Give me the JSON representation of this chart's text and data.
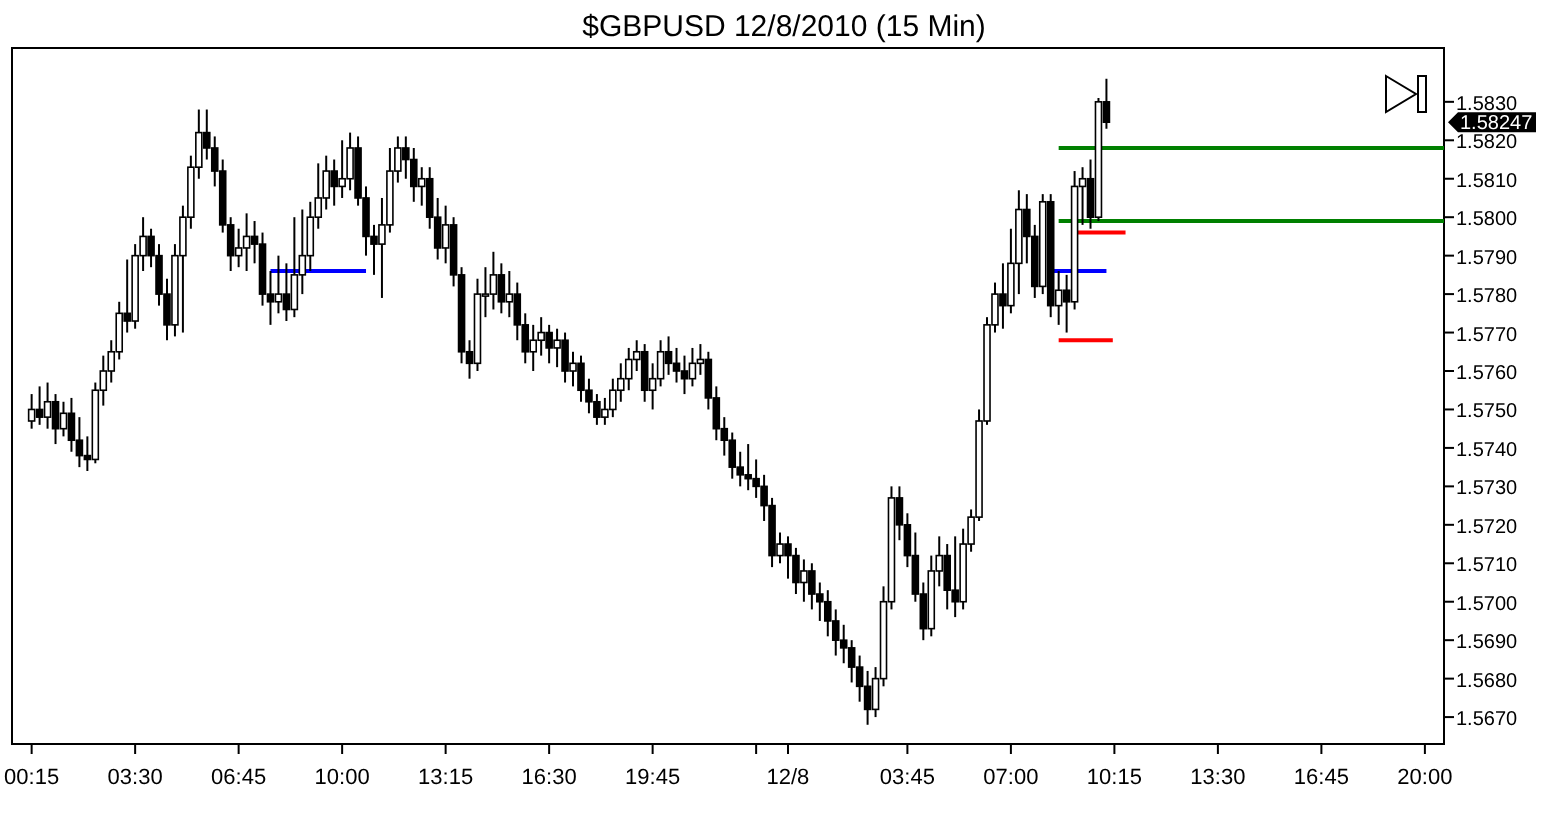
{
  "chart_data": {
    "type": "candlestick",
    "title": "$GBPUSD  12/8/2010 (15 Min)",
    "x": [
      "2010-12-07T00:15",
      "2010-12-07T00:30",
      "2010-12-07T00:45",
      "2010-12-07T01:00",
      "2010-12-07T01:15",
      "2010-12-07T01:30",
      "2010-12-07T01:45",
      "2010-12-07T02:00",
      "2010-12-07T02:15",
      "2010-12-07T02:30",
      "2010-12-07T02:45",
      "2010-12-07T03:00",
      "2010-12-07T03:15",
      "2010-12-07T03:30",
      "2010-12-07T03:45",
      "2010-12-07T04:00",
      "2010-12-07T04:15",
      "2010-12-07T04:30",
      "2010-12-07T04:45",
      "2010-12-07T05:00",
      "2010-12-07T05:15",
      "2010-12-07T05:30",
      "2010-12-07T05:45",
      "2010-12-07T06:00",
      "2010-12-07T06:15",
      "2010-12-07T06:30",
      "2010-12-07T06:45",
      "2010-12-07T07:00",
      "2010-12-07T07:15",
      "2010-12-07T07:30",
      "2010-12-07T07:45",
      "2010-12-07T08:00",
      "2010-12-07T08:15",
      "2010-12-07T08:30",
      "2010-12-07T08:45",
      "2010-12-07T09:00",
      "2010-12-07T09:15",
      "2010-12-07T09:30",
      "2010-12-07T09:45",
      "2010-12-07T10:00",
      "2010-12-07T10:15",
      "2010-12-07T10:30",
      "2010-12-07T10:45",
      "2010-12-07T11:00",
      "2010-12-07T11:15",
      "2010-12-07T11:30",
      "2010-12-07T11:45",
      "2010-12-07T12:00",
      "2010-12-07T12:15",
      "2010-12-07T12:30",
      "2010-12-07T12:45",
      "2010-12-07T13:00",
      "2010-12-07T13:15",
      "2010-12-07T13:30",
      "2010-12-07T13:45",
      "2010-12-07T14:00",
      "2010-12-07T14:15",
      "2010-12-07T14:30",
      "2010-12-07T14:45",
      "2010-12-07T15:00",
      "2010-12-07T15:15",
      "2010-12-07T15:30",
      "2010-12-07T15:45",
      "2010-12-07T16:00",
      "2010-12-07T16:15",
      "2010-12-07T16:30",
      "2010-12-07T16:45",
      "2010-12-07T17:00",
      "2010-12-07T17:15",
      "2010-12-07T17:30",
      "2010-12-07T17:45",
      "2010-12-07T18:00",
      "2010-12-07T18:15",
      "2010-12-07T18:30",
      "2010-12-07T18:45",
      "2010-12-07T19:00",
      "2010-12-07T19:15",
      "2010-12-07T19:30",
      "2010-12-07T19:45",
      "2010-12-07T20:00",
      "2010-12-07T20:15",
      "2010-12-07T20:30",
      "2010-12-07T20:45",
      "2010-12-07T21:00",
      "2010-12-07T21:15",
      "2010-12-07T21:30",
      "2010-12-07T21:45",
      "2010-12-07T22:00",
      "2010-12-07T22:15",
      "2010-12-07T22:30",
      "2010-12-07T22:45",
      "2010-12-07T23:00",
      "2010-12-07T23:15",
      "2010-12-07T23:30",
      "2010-12-07T23:45",
      "2010-12-08T00:00",
      "2010-12-08T00:15",
      "2010-12-08T00:30",
      "2010-12-08T00:45",
      "2010-12-08T01:00",
      "2010-12-08T01:15",
      "2010-12-08T01:30",
      "2010-12-08T01:45",
      "2010-12-08T02:00",
      "2010-12-08T02:15",
      "2010-12-08T02:30",
      "2010-12-08T02:45",
      "2010-12-08T03:00",
      "2010-12-08T03:15",
      "2010-12-08T03:30",
      "2010-12-08T03:45",
      "2010-12-08T04:00",
      "2010-12-08T04:15",
      "2010-12-08T04:30",
      "2010-12-08T04:45",
      "2010-12-08T05:00",
      "2010-12-08T05:15",
      "2010-12-08T05:30",
      "2010-12-08T05:45",
      "2010-12-08T06:00",
      "2010-12-08T06:15",
      "2010-12-08T06:30",
      "2010-12-08T06:45",
      "2010-12-08T07:00",
      "2010-12-08T07:15",
      "2010-12-08T07:30",
      "2010-12-08T07:45",
      "2010-12-08T08:00",
      "2010-12-08T08:15",
      "2010-12-08T08:30",
      "2010-12-08T08:45",
      "2010-12-08T09:00",
      "2010-12-08T09:15",
      "2010-12-08T09:30",
      "2010-12-08T09:45",
      "2010-12-08T10:00"
    ],
    "ohlc": [
      [
        1.5747,
        1.5754,
        1.5745,
        1.575
      ],
      [
        1.575,
        1.5756,
        1.5746,
        1.5748
      ],
      [
        1.5748,
        1.5757,
        1.5745,
        1.5752
      ],
      [
        1.5752,
        1.5754,
        1.5741,
        1.5745
      ],
      [
        1.5745,
        1.5752,
        1.5743,
        1.5749
      ],
      [
        1.5749,
        1.5753,
        1.5739,
        1.5742
      ],
      [
        1.5742,
        1.5748,
        1.5735,
        1.5738
      ],
      [
        1.5738,
        1.5743,
        1.5734,
        1.5737
      ],
      [
        1.5737,
        1.5757,
        1.5736,
        1.5755
      ],
      [
        1.5755,
        1.5764,
        1.5751,
        1.576
      ],
      [
        1.576,
        1.5768,
        1.5757,
        1.5765
      ],
      [
        1.5765,
        1.5778,
        1.5763,
        1.5775
      ],
      [
        1.5775,
        1.5789,
        1.577,
        1.5773
      ],
      [
        1.5773,
        1.5793,
        1.5771,
        1.579
      ],
      [
        1.579,
        1.58,
        1.5786,
        1.5795
      ],
      [
        1.5795,
        1.5797,
        1.5787,
        1.579
      ],
      [
        1.579,
        1.5793,
        1.5777,
        1.578
      ],
      [
        1.578,
        1.5784,
        1.5768,
        1.5772
      ],
      [
        1.5772,
        1.5793,
        1.5769,
        1.579
      ],
      [
        1.579,
        1.5803,
        1.577,
        1.58
      ],
      [
        1.58,
        1.5816,
        1.5797,
        1.5813
      ],
      [
        1.5813,
        1.5828,
        1.581,
        1.5822
      ],
      [
        1.5822,
        1.5828,
        1.5815,
        1.5818
      ],
      [
        1.5818,
        1.5821,
        1.5808,
        1.5812
      ],
      [
        1.5812,
        1.5815,
        1.5796,
        1.5798
      ],
      [
        1.5798,
        1.58,
        1.5786,
        1.579
      ],
      [
        1.579,
        1.5797,
        1.5787,
        1.5792
      ],
      [
        1.5792,
        1.5801,
        1.5786,
        1.5795
      ],
      [
        1.5795,
        1.5799,
        1.5788,
        1.5793
      ],
      [
        1.5793,
        1.5796,
        1.5777,
        1.578
      ],
      [
        1.578,
        1.5786,
        1.5772,
        1.5778
      ],
      [
        1.5778,
        1.579,
        1.5775,
        1.578
      ],
      [
        1.578,
        1.5788,
        1.5773,
        1.5776
      ],
      [
        1.5776,
        1.58,
        1.5774,
        1.5785
      ],
      [
        1.5785,
        1.5802,
        1.578,
        1.579
      ],
      [
        1.579,
        1.5804,
        1.5786,
        1.58
      ],
      [
        1.58,
        1.5814,
        1.5797,
        1.5805
      ],
      [
        1.5805,
        1.5816,
        1.5802,
        1.5812
      ],
      [
        1.5812,
        1.5815,
        1.5803,
        1.5808
      ],
      [
        1.5808,
        1.582,
        1.5805,
        1.581
      ],
      [
        1.581,
        1.5822,
        1.5807,
        1.5818
      ],
      [
        1.5818,
        1.5821,
        1.5803,
        1.5805
      ],
      [
        1.5805,
        1.5808,
        1.579,
        1.5795
      ],
      [
        1.5795,
        1.5798,
        1.5785,
        1.5793
      ],
      [
        1.5793,
        1.5805,
        1.5779,
        1.5798
      ],
      [
        1.5798,
        1.5818,
        1.5796,
        1.5812
      ],
      [
        1.5812,
        1.5821,
        1.5809,
        1.5818
      ],
      [
        1.5818,
        1.5821,
        1.581,
        1.5815
      ],
      [
        1.5815,
        1.5818,
        1.5804,
        1.5808
      ],
      [
        1.5808,
        1.5813,
        1.5803,
        1.581
      ],
      [
        1.581,
        1.5813,
        1.5797,
        1.58
      ],
      [
        1.58,
        1.5805,
        1.5789,
        1.5792
      ],
      [
        1.5792,
        1.5803,
        1.5788,
        1.5798
      ],
      [
        1.5798,
        1.58,
        1.5782,
        1.5785
      ],
      [
        1.5785,
        1.5787,
        1.5762,
        1.5765
      ],
      [
        1.5765,
        1.5768,
        1.5758,
        1.5762
      ],
      [
        1.5762,
        1.5784,
        1.576,
        1.578
      ],
      [
        1.578,
        1.5787,
        1.5774,
        1.578
      ],
      [
        1.578,
        1.5791,
        1.5776,
        1.5785
      ],
      [
        1.5785,
        1.5788,
        1.5775,
        1.5778
      ],
      [
        1.5778,
        1.5786,
        1.5774,
        1.578
      ],
      [
        1.578,
        1.5783,
        1.5768,
        1.5772
      ],
      [
        1.5772,
        1.5775,
        1.5762,
        1.5765
      ],
      [
        1.5765,
        1.5772,
        1.576,
        1.5768
      ],
      [
        1.5768,
        1.5774,
        1.5764,
        1.577
      ],
      [
        1.577,
        1.5772,
        1.5762,
        1.5766
      ],
      [
        1.5766,
        1.5771,
        1.5761,
        1.5768
      ],
      [
        1.5768,
        1.577,
        1.5757,
        1.576
      ],
      [
        1.576,
        1.5765,
        1.5756,
        1.5762
      ],
      [
        1.5762,
        1.5764,
        1.5752,
        1.5755
      ],
      [
        1.5755,
        1.5758,
        1.5749,
        1.5752
      ],
      [
        1.5752,
        1.5754,
        1.5746,
        1.5748
      ],
      [
        1.5748,
        1.5753,
        1.5746,
        1.575
      ],
      [
        1.575,
        1.5758,
        1.5748,
        1.5755
      ],
      [
        1.5755,
        1.5762,
        1.5752,
        1.5758
      ],
      [
        1.5758,
        1.5766,
        1.5755,
        1.5763
      ],
      [
        1.5763,
        1.5768,
        1.576,
        1.5765
      ],
      [
        1.5765,
        1.5767,
        1.5752,
        1.5755
      ],
      [
        1.5755,
        1.5762,
        1.575,
        1.5758
      ],
      [
        1.5758,
        1.5768,
        1.5756,
        1.5765
      ],
      [
        1.5765,
        1.5769,
        1.5759,
        1.5762
      ],
      [
        1.5762,
        1.5766,
        1.5757,
        1.576
      ],
      [
        1.576,
        1.5764,
        1.5754,
        1.5758
      ],
      [
        1.5758,
        1.5766,
        1.5756,
        1.5762
      ],
      [
        1.5762,
        1.5767,
        1.5759,
        1.5763
      ],
      [
        1.5763,
        1.5765,
        1.575,
        1.5753
      ],
      [
        1.5753,
        1.5756,
        1.5742,
        1.5745
      ],
      [
        1.5745,
        1.5748,
        1.5738,
        1.5742
      ],
      [
        1.5742,
        1.5744,
        1.5732,
        1.5735
      ],
      [
        1.5735,
        1.5739,
        1.573,
        1.5733
      ],
      [
        1.5733,
        1.5741,
        1.5729,
        1.5732
      ],
      [
        1.5732,
        1.5737,
        1.5727,
        1.573
      ],
      [
        1.573,
        1.5733,
        1.5721,
        1.5725
      ],
      [
        1.5725,
        1.5727,
        1.5709,
        1.5712
      ],
      [
        1.5712,
        1.5718,
        1.571,
        1.5715
      ],
      [
        1.5715,
        1.5717,
        1.5706,
        1.5712
      ],
      [
        1.5712,
        1.5714,
        1.5702,
        1.5705
      ],
      [
        1.5705,
        1.5711,
        1.57,
        1.5708
      ],
      [
        1.5708,
        1.571,
        1.5698,
        1.5702
      ],
      [
        1.5702,
        1.5705,
        1.5695,
        1.57
      ],
      [
        1.57,
        1.5703,
        1.5691,
        1.5695
      ],
      [
        1.5695,
        1.5698,
        1.5686,
        1.569
      ],
      [
        1.569,
        1.5694,
        1.5684,
        1.5688
      ],
      [
        1.5688,
        1.569,
        1.5679,
        1.5683
      ],
      [
        1.5683,
        1.5686,
        1.5674,
        1.5678
      ],
      [
        1.5678,
        1.5682,
        1.5668,
        1.5672
      ],
      [
        1.5672,
        1.5683,
        1.567,
        1.568
      ],
      [
        1.568,
        1.5704,
        1.5678,
        1.57
      ],
      [
        1.57,
        1.573,
        1.5698,
        1.5727
      ],
      [
        1.5727,
        1.573,
        1.5716,
        1.572
      ],
      [
        1.572,
        1.5723,
        1.5709,
        1.5712
      ],
      [
        1.5712,
        1.5718,
        1.57,
        1.5702
      ],
      [
        1.5702,
        1.5705,
        1.569,
        1.5693
      ],
      [
        1.5693,
        1.5712,
        1.5691,
        1.5708
      ],
      [
        1.5708,
        1.5717,
        1.5704,
        1.5712
      ],
      [
        1.5712,
        1.5715,
        1.5698,
        1.5703
      ],
      [
        1.5703,
        1.5717,
        1.5696,
        1.57
      ],
      [
        1.57,
        1.5719,
        1.5698,
        1.5715
      ],
      [
        1.5715,
        1.5724,
        1.5713,
        1.5722
      ],
      [
        1.5722,
        1.575,
        1.5721,
        1.5747
      ],
      [
        1.5747,
        1.5774,
        1.5746,
        1.5772
      ],
      [
        1.5772,
        1.5783,
        1.577,
        1.578
      ],
      [
        1.578,
        1.5788,
        1.5771,
        1.5777
      ],
      [
        1.5777,
        1.5797,
        1.5775,
        1.5788
      ],
      [
        1.5788,
        1.5807,
        1.578,
        1.5802
      ],
      [
        1.5802,
        1.5806,
        1.5788,
        1.5795
      ],
      [
        1.5795,
        1.5798,
        1.5779,
        1.5782
      ],
      [
        1.5782,
        1.5806,
        1.578,
        1.5804
      ],
      [
        1.5804,
        1.5806,
        1.5774,
        1.5777
      ],
      [
        1.5777,
        1.5786,
        1.5772,
        1.5781
      ],
      [
        1.5781,
        1.5785,
        1.577,
        1.5778
      ],
      [
        1.5778,
        1.5812,
        1.5776,
        1.5808
      ],
      [
        1.5808,
        1.5813,
        1.5798,
        1.581
      ],
      [
        1.581,
        1.5815,
        1.5797,
        1.58
      ],
      [
        1.58,
        1.5831,
        1.5799,
        1.583
      ],
      [
        1.583,
        1.5836,
        1.5823,
        1.58247
      ]
    ],
    "series": [
      {
        "type": "line",
        "x": [
          "2010-12-08T08:30",
          "2010-12-08T20:36"
        ],
        "values": [
          1.5818,
          1.5818
        ],
        "color": "#008000"
      },
      {
        "type": "line",
        "x": [
          "2010-12-08T08:30",
          "2010-12-08T20:36"
        ],
        "values": [
          1.5799,
          1.5799
        ],
        "color": "#008000"
      },
      {
        "type": "line",
        "x": [
          "2010-12-07T07:45",
          "2010-12-07T10:45"
        ],
        "values": [
          1.5786,
          1.5786
        ],
        "color": "#0000ff"
      },
      {
        "type": "line",
        "x": [
          "2010-12-08T08:18",
          "2010-12-08T10:00"
        ],
        "values": [
          1.5786,
          1.5786
        ],
        "color": "#0000ff"
      },
      {
        "type": "line",
        "x": [
          "2010-12-08T08:54",
          "2010-12-08T10:36"
        ],
        "values": [
          1.5796,
          1.5796
        ],
        "color": "#ff0000"
      },
      {
        "type": "line",
        "x": [
          "2010-12-08T08:30",
          "2010-12-08T10:12"
        ],
        "values": [
          1.5768,
          1.5768
        ],
        "color": "#ff0000"
      }
    ],
    "annotations": [
      "1.58247"
    ],
    "xlim": [
      "2010-12-06T23:38",
      "2010-12-08T20:36"
    ],
    "xticks": [
      {
        "value": "2010-12-07T00:15",
        "label": "00:15"
      },
      {
        "value": "2010-12-07T03:30",
        "label": "03:30"
      },
      {
        "value": "2010-12-07T06:45",
        "label": "06:45"
      },
      {
        "value": "2010-12-07T10:00",
        "label": "10:00"
      },
      {
        "value": "2010-12-07T13:15",
        "label": "13:15"
      },
      {
        "value": "2010-12-07T16:30",
        "label": "16:30"
      },
      {
        "value": "2010-12-07T19:45",
        "label": "19:45"
      },
      {
        "value": "2010-12-07T23:00",
        "label": null
      },
      {
        "value": "2010-12-08T00:00",
        "label": "12/8"
      },
      {
        "value": "2010-12-08T03:45",
        "label": "03:45"
      },
      {
        "value": "2010-12-08T07:00",
        "label": "07:00"
      },
      {
        "value": "2010-12-08T10:15",
        "label": "10:15"
      },
      {
        "value": "2010-12-08T13:30",
        "label": "13:30"
      },
      {
        "value": "2010-12-08T16:45",
        "label": "16:45"
      },
      {
        "value": "2010-12-08T20:00",
        "label": "20:00"
      }
    ],
    "ylim": [
      1.5663,
      1.5844
    ],
    "yticks": [
      {
        "value": 1.567,
        "label": "1.5670"
      },
      {
        "value": 1.568,
        "label": "1.5680"
      },
      {
        "value": 1.569,
        "label": "1.5690"
      },
      {
        "value": 1.57,
        "label": "1.5700"
      },
      {
        "value": 1.571,
        "label": "1.5710"
      },
      {
        "value": 1.572,
        "label": "1.5720"
      },
      {
        "value": 1.573,
        "label": "1.5730"
      },
      {
        "value": 1.574,
        "label": "1.5740"
      },
      {
        "value": 1.575,
        "label": "1.5750"
      },
      {
        "value": 1.576,
        "label": "1.5760"
      },
      {
        "value": 1.577,
        "label": "1.5770"
      },
      {
        "value": 1.578,
        "label": "1.5780"
      },
      {
        "value": 1.579,
        "label": "1.5790"
      },
      {
        "value": 1.58,
        "label": "1.5800"
      },
      {
        "value": 1.581,
        "label": "1.5810"
      },
      {
        "value": 1.582,
        "label": "1.5820"
      },
      {
        "value": 1.583,
        "label": "1.5830"
      }
    ]
  }
}
